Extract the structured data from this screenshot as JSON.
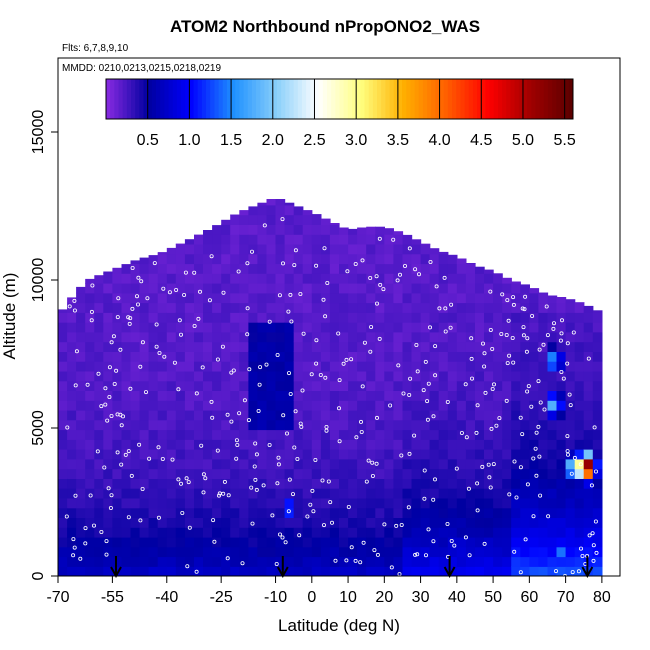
{
  "chart_data": {
    "type": "heatmap",
    "title": "ATOM2 Northbound nPropONO2_WAS",
    "flights_label": "Flts: 6,7,8,9,10",
    "mmdd_label": "MMDD: 0210,0213,0215,0218,0219",
    "xlabel": "Latitude (deg N)",
    "ylabel": "Altitude (m)",
    "xlim": [
      -70,
      85
    ],
    "ylim": [
      0,
      17500
    ],
    "x_ticks": [
      -70,
      -55,
      -40,
      -25,
      -10,
      0,
      10,
      20,
      30,
      40,
      50,
      60,
      70,
      80
    ],
    "y_ticks": [
      0,
      5000,
      10000,
      15000
    ],
    "colorbar": {
      "range": [
        0,
        5.6
      ],
      "ticks": [
        0.5,
        1.0,
        1.5,
        2.0,
        2.5,
        3.0,
        3.5,
        4.0,
        4.5,
        5.0,
        5.5
      ],
      "tick_labels": [
        "0.5",
        "1.0",
        "1.5",
        "2.0",
        "2.5",
        "3.0",
        "3.5",
        "4.0",
        "4.5",
        "5.0",
        "5.5"
      ],
      "colors": [
        "#8a2be2",
        "#0000a0",
        "#0000ff",
        "#1e90ff",
        "#87cefa",
        "#ffffff",
        "#ffff80",
        "#ffb000",
        "#ff6000",
        "#ff0000",
        "#a00000",
        "#5a0000"
      ]
    },
    "coverage_profile": {
      "latitude": [
        -70,
        -67,
        -65,
        -62,
        -58,
        -52,
        -48,
        -42,
        -35,
        -27,
        -20,
        -12,
        -10,
        0,
        5,
        10,
        15,
        20,
        25,
        30,
        35,
        40,
        45,
        50,
        55,
        60,
        65,
        70,
        75,
        80
      ],
      "max_altitude": [
        8800,
        9300,
        9600,
        10000,
        10200,
        10500,
        10700,
        10900,
        11300,
        11800,
        12300,
        12700,
        12800,
        12300,
        12000,
        11700,
        11800,
        11800,
        11600,
        11300,
        11000,
        10800,
        10500,
        10300,
        10000,
        9800,
        9500,
        9400,
        9200,
        8900
      ]
    },
    "hotspots": [
      {
        "lat": 76,
        "alt": 3700,
        "value": 5.5
      },
      {
        "lat": 73,
        "alt": 3700,
        "value": 3.5
      },
      {
        "lat": 67,
        "alt": 5800,
        "value": 2.0
      },
      {
        "lat": 67,
        "alt": 7300,
        "value": 1.8
      },
      {
        "lat": 68,
        "alt": 800,
        "value": 1.6
      },
      {
        "lat": 40,
        "alt": 1000,
        "value": 1.2
      },
      {
        "lat": -6,
        "alt": 2300,
        "value": 1.3
      }
    ],
    "arrows_latitude": [
      -54,
      -8,
      38,
      76
    ]
  }
}
